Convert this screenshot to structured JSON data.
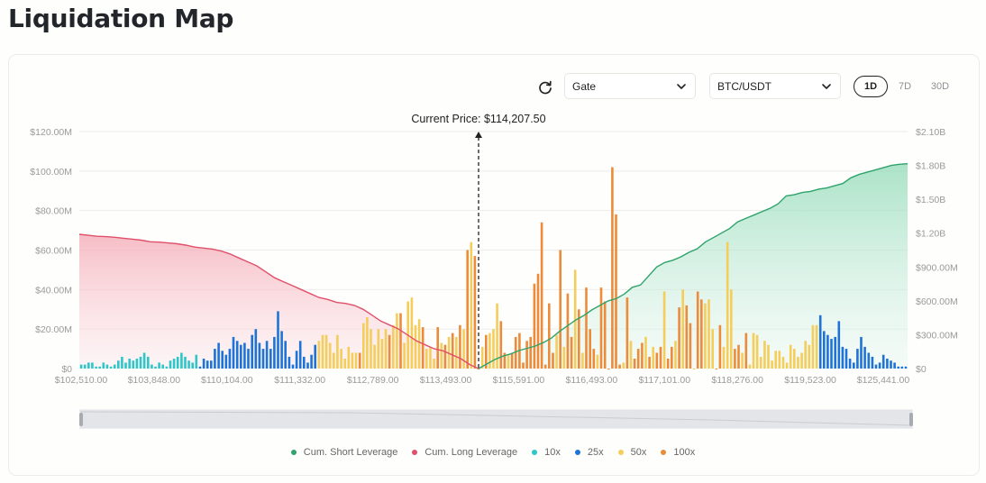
{
  "page": {
    "title": "Liquidation Map"
  },
  "controls": {
    "refresh_icon": "refresh-icon",
    "exchange": {
      "selected": "Gate"
    },
    "pair": {
      "selected": "BTC/USDT"
    },
    "ranges": [
      {
        "label": "1D",
        "active": true
      },
      {
        "label": "7D",
        "active": false
      },
      {
        "label": "30D",
        "active": false
      }
    ]
  },
  "colors": {
    "short": "#2fa36b",
    "long": "#e0506a",
    "lev10x": "#2ec6c9",
    "lev25x": "#1f73d6",
    "lev50x": "#f4cd5a",
    "lev100x": "#ec8b3a"
  },
  "chart_data": {
    "type": "bar",
    "title": "Liquidation Map",
    "annotation": "Current Price: $114,207.50",
    "current_price": 114207.5,
    "x_tick_labels": [
      "$102,510.00",
      "$103,848.00",
      "$110,104.00",
      "$111,332.00",
      "$112,789.00",
      "$113,493.00",
      "$115,591.00",
      "$116,493.00",
      "$117,101.00",
      "$118,276.00",
      "$119,523.00",
      "$125,441.00"
    ],
    "y_left": {
      "ticks": [
        "$0",
        "$20.00M",
        "$40.00M",
        "$60.00M",
        "$80.00M",
        "$100.00M",
        "$120.00M"
      ],
      "range": [
        0,
        120
      ],
      "unit": "M USD"
    },
    "y_right": {
      "ticks": [
        "$0",
        "$300.00M",
        "$600.00M",
        "$900.00M",
        "$1.20B",
        "$1.50B",
        "$1.80B",
        "$2.10B"
      ],
      "range": [
        0,
        2100
      ],
      "unit": "M USD"
    },
    "grid": true,
    "legend_position": "bottom",
    "legend": [
      "Cum. Short Leverage",
      "Cum. Long Leverage",
      "10x",
      "25x",
      "50x",
      "100x"
    ],
    "bar_leverage": "aaaaaaaaaaaaaaaaaaaaaaaaaaaaaaaabbbbbbbbbbbbbbbbbbbbbbbbbbbbbbbbcccccccccccdcccccccdccdcccccdcccdcdcdcdcdcddcdcccddcddddddddddddcdcddcdcdddcddddddcdcdddcdcddcddcdcddcddcccddcccddcdcccccccccccccccccccbbbbbbbbbbbbbbbbbbbbbbbbbbbbbbbbbbaaaaaaa",
    "series": [
      {
        "name": "bars_M",
        "values": [
          2,
          2,
          3,
          3,
          1,
          1,
          3,
          2,
          1,
          2,
          4,
          6,
          3,
          5,
          4,
          5,
          6,
          8,
          6,
          2,
          1,
          3,
          2,
          1,
          4,
          5,
          6,
          8,
          6,
          4,
          3,
          7,
          1,
          5,
          4,
          4,
          10,
          13,
          9,
          7,
          10,
          16,
          14,
          12,
          13,
          10,
          17,
          20,
          13,
          10,
          14,
          10,
          16,
          29,
          19,
          14,
          6,
          2,
          9,
          14,
          6,
          3,
          7,
          12,
          14,
          17,
          17,
          13,
          8,
          17,
          10,
          5,
          11,
          8,
          8,
          8,
          23,
          26,
          20,
          12,
          20,
          15,
          20,
          17,
          22,
          28,
          28,
          13,
          34,
          36,
          22,
          25,
          21,
          10,
          11,
          5,
          21,
          13,
          12,
          16,
          18,
          16,
          22,
          20,
          60,
          64,
          57,
          0,
          11,
          17,
          18,
          20,
          33,
          24,
          8,
          7,
          8,
          16,
          18,
          3,
          14,
          16,
          43,
          48,
          74,
          2,
          33,
          8,
          17,
          60,
          11,
          38,
          16,
          50,
          30,
          8,
          41,
          20,
          10,
          7,
          41,
          34,
          0,
          102,
          78,
          2,
          3,
          36,
          14,
          5,
          10,
          13,
          16,
          6,
          11,
          8,
          11,
          39,
          5,
          11,
          14,
          31,
          40,
          32,
          23,
          0,
          39,
          35,
          33,
          35,
          20,
          0,
          22,
          11,
          64,
          40,
          10,
          12,
          8,
          18,
          2,
          18,
          17,
          6,
          14,
          12,
          4,
          9,
          9,
          6,
          3,
          12,
          10,
          6,
          8,
          14,
          12,
          22,
          22,
          27,
          19,
          17,
          15,
          16,
          24,
          11,
          10,
          5,
          3,
          10,
          16,
          11,
          8,
          6,
          2,
          3,
          7,
          5,
          4,
          3,
          1,
          1,
          1
        ]
      },
      {
        "name": "Cum. Long Leverage",
        "unit": "M",
        "values": [
          68,
          67.5,
          67,
          66.8,
          66.5,
          66,
          65.5,
          65,
          64.2,
          64,
          63.6,
          63.2,
          62.5,
          61.5,
          61,
          60.5,
          59.5,
          58,
          56,
          54,
          52,
          49,
          46,
          44,
          42,
          40,
          38,
          36,
          35,
          33.5,
          33,
          32,
          30,
          27,
          24,
          22,
          20,
          17,
          14,
          12,
          10,
          9,
          7,
          5,
          2,
          0
        ]
      },
      {
        "name": "Cum. Short Leverage",
        "unit": "M",
        "values": [
          0,
          40,
          80,
          110,
          130,
          160,
          180,
          200,
          230,
          270,
          330,
          380,
          430,
          470,
          520,
          560,
          600,
          620,
          660,
          720,
          740,
          820,
          900,
          940,
          960,
          990,
          1030,
          1060,
          1120,
          1160,
          1200,
          1240,
          1300,
          1330,
          1360,
          1390,
          1420,
          1460,
          1530,
          1540,
          1560,
          1570,
          1590,
          1600,
          1620,
          1640,
          1690,
          1720,
          1740,
          1760,
          1780,
          1800,
          1810,
          1815
        ]
      }
    ]
  }
}
